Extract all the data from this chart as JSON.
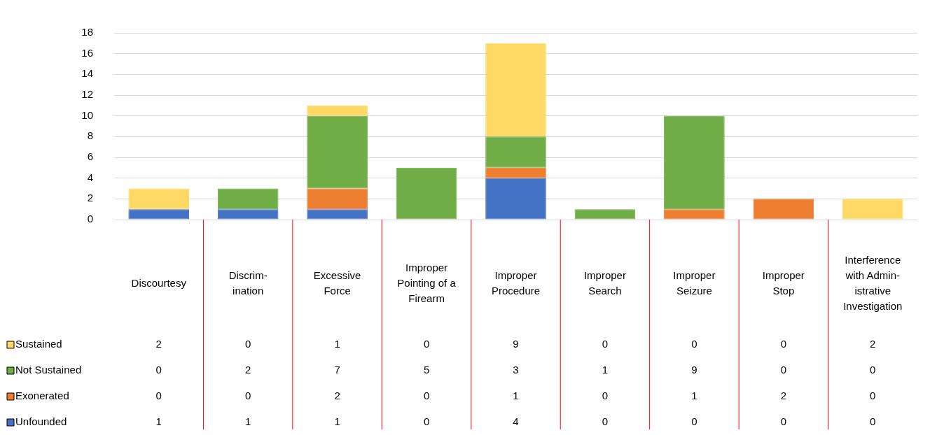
{
  "chart_data": {
    "type": "bar",
    "stacked": true,
    "categories": [
      "Discourtesy",
      "Discrim-ination",
      "Excessive Force",
      "Improper Pointing of a Firearm",
      "Improper Procedure",
      "Improper Search",
      "Improper Seizure",
      "Improper Stop",
      "Interference with Admin-istrative Investigation"
    ],
    "series": [
      {
        "name": "Unfounded",
        "color": "#4472c4",
        "values": [
          1,
          1,
          1,
          0,
          4,
          0,
          0,
          0,
          0
        ]
      },
      {
        "name": "Exonerated",
        "color": "#ed7d31",
        "values": [
          0,
          0,
          2,
          0,
          1,
          0,
          1,
          2,
          0
        ]
      },
      {
        "name": "Not Sustained",
        "color": "#70ad47",
        "values": [
          0,
          2,
          7,
          5,
          3,
          1,
          9,
          0,
          0
        ]
      },
      {
        "name": "Sustained",
        "color": "#ffd966",
        "values": [
          2,
          0,
          1,
          0,
          9,
          0,
          0,
          0,
          2
        ]
      }
    ],
    "ylim": [
      0,
      18
    ],
    "yticks": [
      0,
      2,
      4,
      6,
      8,
      10,
      12,
      14,
      16,
      18
    ],
    "grid": "y",
    "data_labels": true,
    "legend": "bottom left"
  }
}
